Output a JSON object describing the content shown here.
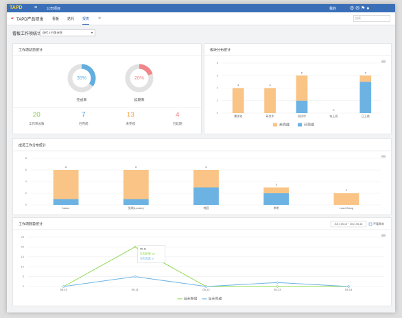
{
  "nav": {
    "logo": "TAPD",
    "workspace": "公司项目",
    "user": "我的",
    "project": "TAPD产品研发",
    "tabs": [
      "看板",
      "迭代",
      "报表"
    ],
    "search": "搜索"
  },
  "page_title": "看板工作项统计",
  "select": "迭代 3 开发计划",
  "chart_data": [
    {
      "type": "donut",
      "title": "工作项状态统计",
      "categories": [
        "完成率",
        "延期率"
      ],
      "values": [
        35,
        20
      ],
      "value_labels": [
        "35%",
        "20%"
      ],
      "colors": [
        "#62aee0",
        "#f0868a"
      ],
      "ring_color": "#e2e2e2",
      "stats": {
        "values": [
          20,
          7,
          13,
          4
        ],
        "labels": [
          "工作项总数",
          "已完成",
          "未完成",
          "已延期"
        ],
        "colors": [
          "#8ccf4d",
          "#4c9ddc",
          "#f5a34c",
          "#f0868a"
        ]
      }
    },
    {
      "type": "stacked_bar",
      "title": "板块分布统计",
      "categories": [
        "需求池",
        "研发中",
        "测试中",
        "待上线",
        "已上线"
      ],
      "series": [
        {
          "name": "未完成",
          "color": "#f9c485",
          "values": [
            4,
            4,
            4,
            0,
            1
          ]
        },
        {
          "name": "已完成",
          "color": "#6cb3e4",
          "values": [
            0,
            0,
            2,
            0,
            5
          ]
        }
      ],
      "total_labels": [
        4,
        4,
        6,
        0,
        6
      ],
      "ylim": [
        0,
        8
      ],
      "yticks": [
        0,
        2,
        4,
        6,
        8
      ],
      "grid": true,
      "legend": "bottom"
    },
    {
      "type": "stacked_bar",
      "title": "成员工作分布统计",
      "categories": [
        "Name",
        "张琪(Leader)",
        "韩茜",
        "李明",
        "Lead Wang"
      ],
      "series": [
        {
          "name": "未完成",
          "color": "#f9c485",
          "values": [
            5,
            5,
            3,
            1,
            2
          ]
        },
        {
          "name": "已完成",
          "color": "#6cb3e4",
          "values": [
            1,
            1,
            3,
            2,
            0
          ]
        }
      ],
      "total_labels": [
        6,
        6,
        6,
        3,
        2
      ],
      "ylim": [
        0,
        8
      ],
      "yticks": [
        0,
        2,
        4,
        6,
        8
      ],
      "grid": true
    },
    {
      "type": "line",
      "title": "工作项趋势统计",
      "date_range": "2017-05-10 ~ 2017-05-16",
      "checkbox": "不看周末",
      "categories": [
        "05-10",
        "05-11",
        "05-12",
        "05-13",
        "05-14"
      ],
      "series": [
        {
          "name": "当天新增",
          "color": "#8fd851",
          "values": [
            0,
            20,
            0,
            0,
            0
          ]
        },
        {
          "name": "当天完成",
          "color": "#6cb3e4",
          "values": [
            0,
            5,
            0,
            2,
            0
          ]
        }
      ],
      "ylim": [
        0,
        25
      ],
      "yticks": [
        0,
        5,
        10,
        15,
        20,
        25
      ],
      "grid": true,
      "legend": "bottom",
      "tooltip_index": 1
    }
  ]
}
